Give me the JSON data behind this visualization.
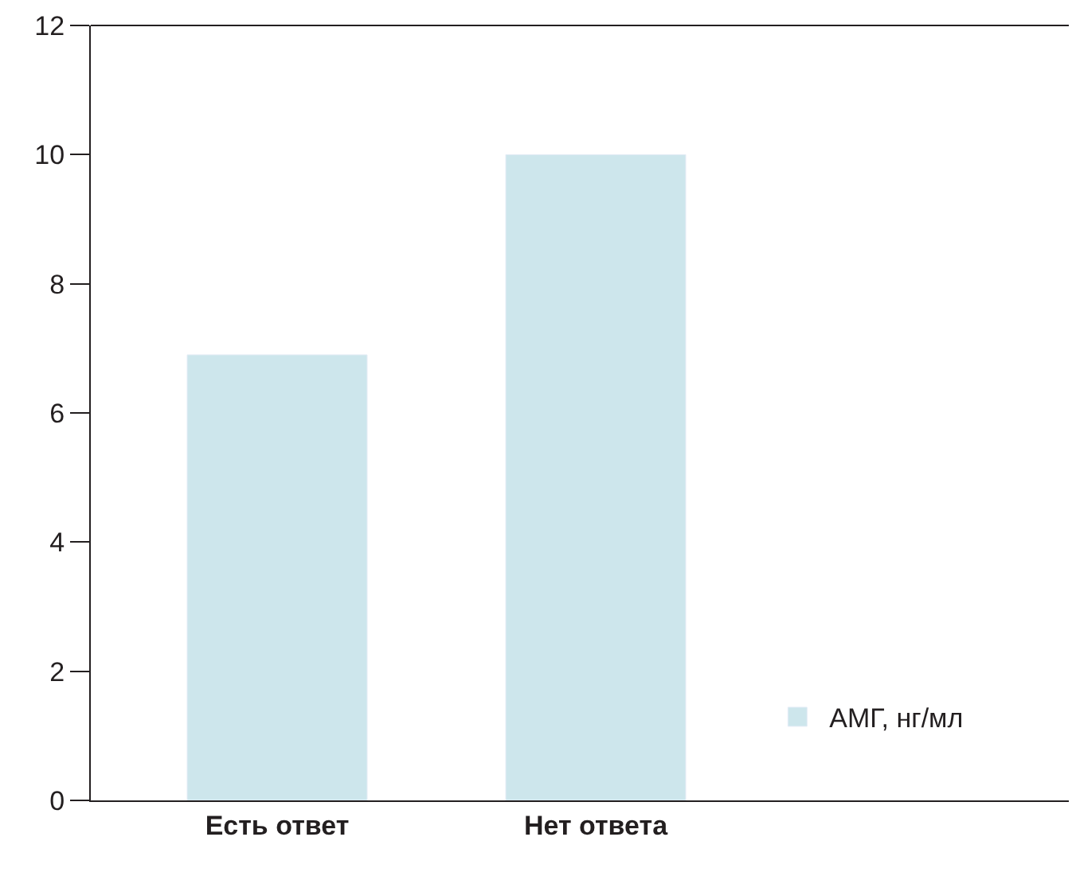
{
  "chart_data": {
    "type": "bar",
    "categories": [
      "Есть ответ",
      "Нет ответа"
    ],
    "series": [
      {
        "name": "АМГ, нг/мл",
        "color": "#cde6ec",
        "values": [
          6.9,
          10
        ]
      }
    ],
    "ylim": [
      0,
      12
    ],
    "yticks": [
      0,
      2,
      4,
      6,
      8,
      10,
      12
    ],
    "legend": "bottom right"
  }
}
